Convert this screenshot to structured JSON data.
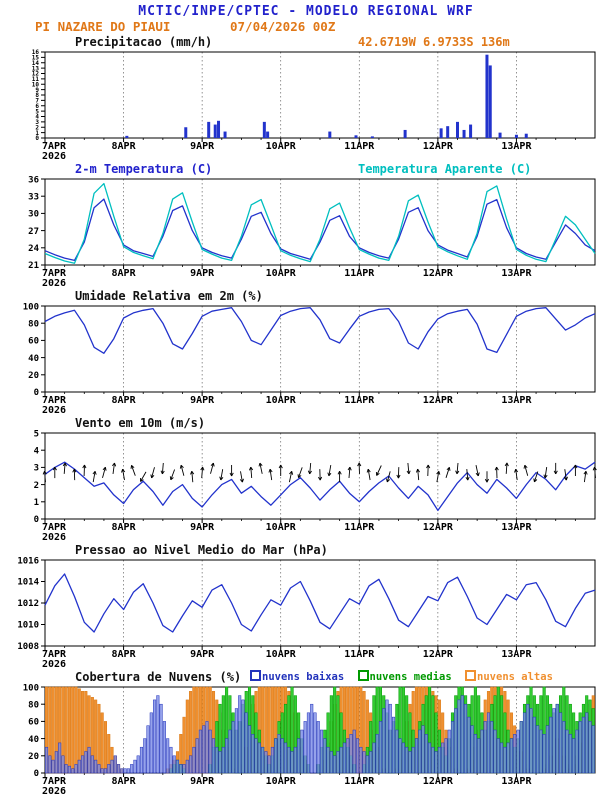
{
  "header": {
    "title": "MCTIC/INPE/CPTEC - MODELO REGIONAL WRF",
    "station": "PI NAZARE DO PIAUI",
    "run_datetime": "07/04/2026 00Z",
    "location": "42.6719W 6.9733S 136m"
  },
  "colors": {
    "header_blue": "#2222cc",
    "orange": "#e07818",
    "line_blue": "#2233cc",
    "cyan": "#00bfbf",
    "axis": "#000000",
    "grid": "#666666"
  },
  "x_axis": {
    "total_hours": 168,
    "day_tick_hours": [
      0,
      24,
      48,
      72,
      96,
      120,
      144
    ],
    "day_labels": [
      "7APR",
      "8APR",
      "9APR",
      "10APR",
      "11APR",
      "12APR",
      "13APR"
    ],
    "year_label": "2026"
  },
  "chart_data": [
    {
      "id": "precipitacao",
      "type": "bar",
      "title": "Precipitacao (mm/h)",
      "ylim": [
        0,
        16
      ],
      "ytick": 1,
      "ylabel_size": 6,
      "series": [
        {
          "name": "Precipitacao",
          "color": "#2233cc",
          "points": [
            [
              25,
              0.4
            ],
            [
              43,
              2.0
            ],
            [
              50,
              3.0
            ],
            [
              52,
              2.5
            ],
            [
              53,
              3.2
            ],
            [
              55,
              1.2
            ],
            [
              67,
              3.0
            ],
            [
              68,
              1.2
            ],
            [
              87,
              1.2
            ],
            [
              95,
              0.5
            ],
            [
              100,
              0.3
            ],
            [
              110,
              1.5
            ],
            [
              121,
              1.8
            ],
            [
              123,
              2.2
            ],
            [
              126,
              3.0
            ],
            [
              128,
              1.5
            ],
            [
              130,
              2.5
            ],
            [
              135,
              15.5
            ],
            [
              136,
              13.5
            ],
            [
              139,
              1.0
            ],
            [
              144,
              0.6
            ],
            [
              147,
              0.8
            ]
          ]
        }
      ]
    },
    {
      "id": "temperatura",
      "type": "line",
      "title": "2-m Temperatura (C)",
      "title_right": "Temperatura Aparente (C)",
      "ylim": [
        21,
        36
      ],
      "ytick": 3,
      "step_hours": 3,
      "series": [
        {
          "name": "2-m Temperatura (C)",
          "color": "#2233cc",
          "values": [
            23.5,
            22.8,
            22.2,
            21.8,
            25.0,
            31.0,
            32.5,
            28.0,
            24.5,
            23.5,
            23.0,
            22.5,
            26.0,
            30.5,
            31.3,
            27.0,
            24.0,
            23.2,
            22.6,
            22.2,
            25.5,
            29.5,
            30.2,
            26.5,
            23.8,
            23.0,
            22.5,
            22.0,
            25.0,
            28.8,
            29.6,
            26.0,
            24.0,
            23.2,
            22.6,
            22.2,
            25.5,
            30.2,
            31.0,
            27.0,
            24.5,
            23.6,
            23.0,
            22.4,
            26.0,
            31.6,
            32.4,
            27.5,
            24.0,
            23.0,
            22.4,
            22.0,
            25.0,
            28.0,
            26.5,
            24.5,
            23.5
          ]
        },
        {
          "name": "Temperatura Aparente (C)",
          "color": "#00bfbf",
          "values": [
            23.0,
            22.3,
            21.7,
            21.3,
            25.5,
            33.5,
            35.2,
            29.5,
            24.2,
            23.2,
            22.6,
            22.1,
            26.5,
            32.5,
            33.6,
            28.5,
            23.7,
            22.9,
            22.2,
            21.8,
            26.0,
            31.5,
            32.4,
            28.0,
            23.5,
            22.7,
            22.1,
            21.6,
            25.5,
            30.8,
            31.8,
            27.5,
            23.7,
            22.9,
            22.2,
            21.8,
            26.0,
            32.2,
            33.2,
            28.5,
            24.2,
            23.3,
            22.6,
            22.0,
            26.5,
            33.8,
            34.8,
            29.0,
            23.7,
            22.7,
            22.0,
            21.6,
            25.5,
            29.5,
            28.0,
            25.5,
            23.0
          ]
        }
      ]
    },
    {
      "id": "umidade",
      "type": "line",
      "title": "Umidade Relativa em 2m (%)",
      "ylim": [
        0,
        100
      ],
      "ytick": 20,
      "step_hours": 3,
      "series": [
        {
          "name": "Umidade Relativa",
          "color": "#2233cc",
          "values": [
            82,
            88,
            92,
            95,
            78,
            52,
            45,
            62,
            86,
            92,
            95,
            97,
            80,
            56,
            50,
            68,
            88,
            94,
            96,
            98,
            82,
            60,
            55,
            72,
            89,
            94,
            97,
            98,
            84,
            62,
            57,
            73,
            88,
            93,
            96,
            97,
            82,
            57,
            50,
            70,
            85,
            91,
            94,
            96,
            79,
            50,
            46,
            67,
            88,
            94,
            97,
            98,
            85,
            72,
            78,
            86,
            91
          ]
        }
      ]
    },
    {
      "id": "vento",
      "type": "wind",
      "title": "Vento em 10m (m/s)",
      "ylim": [
        0,
        5
      ],
      "ytick": 1,
      "step_hours": 3,
      "series": [
        {
          "name": "Velocidade do Vento",
          "color": "#2233cc",
          "values": [
            2.6,
            3.0,
            3.3,
            2.9,
            2.4,
            1.9,
            2.1,
            1.4,
            0.9,
            1.7,
            2.2,
            1.6,
            0.8,
            1.6,
            2.0,
            1.2,
            0.7,
            1.4,
            2.0,
            2.3,
            1.5,
            1.9,
            1.3,
            0.8,
            1.4,
            2.0,
            2.4,
            1.8,
            1.1,
            1.7,
            2.2,
            1.5,
            1.0,
            1.6,
            2.1,
            2.5,
            1.8,
            1.2,
            1.9,
            1.4,
            0.5,
            1.3,
            2.1,
            2.7,
            2.0,
            1.5,
            2.3,
            1.8,
            1.2,
            2.0,
            2.7,
            2.3,
            1.7,
            2.5,
            3.1,
            2.9,
            3.3
          ]
        }
      ],
      "barbs": {
        "color": "#000000",
        "y_value": 2.7,
        "directions_deg": [
          265,
          270,
          275,
          268,
          272,
          280,
          285,
          278,
          260,
          250,
          120,
          105,
          95,
          110,
          255,
          265,
          275,
          285,
          100,
          90,
          80,
          265,
          258,
          262,
          270,
          282,
          110,
          95,
          88,
          100,
          270,
          275,
          268,
          260,
          115,
          105,
          92,
          85,
          265,
          272,
          280,
          288,
          95,
          85,
          78,
          90,
          268,
          274,
          262,
          255,
          108,
          98,
          90,
          82,
          270,
          278,
          265
        ]
      }
    },
    {
      "id": "pressao",
      "type": "line",
      "title": "Pressao ao Nivel Medio do Mar (hPa)",
      "ylim": [
        1008,
        1016
      ],
      "ytick": 2,
      "step_hours": 3,
      "series": [
        {
          "name": "Pressao ao Nivel Medio do Mar",
          "color": "#2233cc",
          "values": [
            1011.8,
            1013.6,
            1014.7,
            1012.6,
            1010.2,
            1009.3,
            1011.0,
            1012.4,
            1011.4,
            1013.0,
            1013.8,
            1012.0,
            1009.9,
            1009.3,
            1010.8,
            1012.2,
            1011.6,
            1013.2,
            1013.7,
            1012.0,
            1010.0,
            1009.4,
            1010.9,
            1012.3,
            1011.8,
            1013.4,
            1014.0,
            1012.2,
            1010.2,
            1009.6,
            1011.0,
            1012.4,
            1011.9,
            1013.6,
            1014.2,
            1012.4,
            1010.4,
            1009.8,
            1011.2,
            1012.6,
            1012.2,
            1013.9,
            1014.4,
            1012.6,
            1010.6,
            1010.0,
            1011.4,
            1012.8,
            1012.3,
            1013.7,
            1013.9,
            1012.3,
            1010.3,
            1009.8,
            1011.5,
            1012.9,
            1013.2
          ]
        }
      ]
    },
    {
      "id": "nuvens",
      "type": "cloudbar",
      "title": "Cobertura de Nuvens (%)",
      "ylim": [
        0,
        100
      ],
      "ytick": 20,
      "step_hours": 1,
      "series": [
        {
          "name": "nuvens altas",
          "color": "#f09030",
          "stroke": "#d87a18",
          "values": [
            100,
            100,
            100,
            100,
            100,
            100,
            100,
            100,
            100,
            100,
            98,
            95,
            95,
            90,
            88,
            85,
            80,
            70,
            60,
            45,
            30,
            20,
            10,
            5,
            0,
            0,
            0,
            0,
            0,
            0,
            0,
            0,
            0,
            0,
            0,
            0,
            0,
            5,
            10,
            15,
            25,
            45,
            65,
            85,
            95,
            100,
            100,
            100,
            100,
            100,
            100,
            95,
            85,
            70,
            50,
            30,
            15,
            5,
            0,
            0,
            10,
            30,
            55,
            80,
            95,
            100,
            100,
            100,
            100,
            100,
            100,
            100,
            100,
            100,
            95,
            85,
            70,
            50,
            30,
            15,
            5,
            0,
            0,
            0,
            5,
            15,
            35,
            60,
            80,
            95,
            100,
            100,
            100,
            100,
            100,
            100,
            100,
            95,
            85,
            70,
            50,
            30,
            15,
            5,
            0,
            0,
            0,
            5,
            15,
            35,
            60,
            80,
            95,
            100,
            100,
            100,
            100,
            100,
            95,
            90,
            85,
            70,
            50,
            30,
            15,
            5,
            0,
            0,
            0,
            5,
            15,
            30,
            50,
            70,
            85,
            95,
            100,
            100,
            100,
            100,
            95,
            85,
            70,
            55,
            40,
            25,
            10,
            5,
            0,
            0,
            0,
            0,
            5,
            10,
            20,
            30,
            40,
            30,
            20,
            10,
            5,
            10,
            20,
            35,
            50,
            65,
            80,
            90
          ]
        },
        {
          "name": "nuvens medias",
          "color": "#33cc33",
          "stroke": "#009900",
          "values": [
            0,
            0,
            0,
            0,
            0,
            0,
            0,
            0,
            0,
            0,
            0,
            0,
            0,
            0,
            0,
            0,
            0,
            0,
            0,
            0,
            0,
            0,
            0,
            0,
            0,
            0,
            0,
            0,
            0,
            0,
            0,
            0,
            0,
            0,
            0,
            0,
            0,
            0,
            5,
            10,
            15,
            10,
            5,
            0,
            0,
            0,
            0,
            0,
            0,
            0,
            10,
            30,
            60,
            80,
            90,
            100,
            90,
            70,
            50,
            60,
            80,
            95,
            100,
            90,
            70,
            50,
            30,
            20,
            10,
            20,
            40,
            60,
            70,
            80,
            90,
            100,
            90,
            70,
            40,
            20,
            10,
            0,
            0,
            10,
            30,
            50,
            70,
            90,
            100,
            90,
            70,
            50,
            30,
            20,
            10,
            0,
            0,
            10,
            30,
            60,
            90,
            100,
            100,
            90,
            70,
            50,
            60,
            80,
            100,
            100,
            90,
            70,
            50,
            40,
            60,
            80,
            90,
            100,
            90,
            70,
            50,
            30,
            20,
            40,
            70,
            90,
            100,
            100,
            90,
            80,
            90,
            100,
            90,
            70,
            50,
            60,
            80,
            90,
            100,
            90,
            70,
            50,
            40,
            30,
            40,
            60,
            80,
            90,
            100,
            90,
            80,
            90,
            100,
            90,
            80,
            70,
            80,
            90,
            100,
            90,
            80,
            70,
            60,
            70,
            80,
            90,
            85,
            75
          ]
        },
        {
          "name": "nuvens baixas",
          "color": "#7b8be6",
          "stroke": "#2233bb",
          "opacity": 0.8,
          "values": [
            30,
            20,
            15,
            25,
            35,
            20,
            10,
            8,
            5,
            10,
            15,
            20,
            25,
            30,
            20,
            15,
            10,
            5,
            5,
            10,
            15,
            20,
            10,
            5,
            5,
            5,
            10,
            15,
            20,
            30,
            40,
            55,
            70,
            85,
            90,
            80,
            60,
            40,
            30,
            20,
            15,
            10,
            10,
            15,
            20,
            30,
            40,
            50,
            55,
            60,
            50,
            40,
            30,
            25,
            30,
            40,
            50,
            60,
            75,
            90,
            85,
            70,
            55,
            45,
            40,
            35,
            30,
            25,
            20,
            30,
            40,
            45,
            40,
            35,
            30,
            25,
            30,
            40,
            50,
            60,
            70,
            80,
            70,
            60,
            50,
            40,
            30,
            25,
            20,
            25,
            30,
            35,
            40,
            45,
            50,
            40,
            30,
            25,
            20,
            25,
            35,
            45,
            60,
            75,
            85,
            80,
            65,
            50,
            40,
            35,
            30,
            25,
            30,
            40,
            50,
            55,
            45,
            35,
            30,
            25,
            30,
            35,
            40,
            50,
            60,
            75,
            85,
            90,
            80,
            65,
            55,
            45,
            40,
            50,
            60,
            70,
            60,
            50,
            40,
            35,
            30,
            35,
            40,
            45,
            50,
            60,
            70,
            80,
            75,
            65,
            55,
            50,
            45,
            55,
            65,
            75,
            80,
            70,
            60,
            50,
            45,
            40,
            50,
            60,
            65,
            70,
            60,
            55
          ]
        }
      ]
    }
  ]
}
